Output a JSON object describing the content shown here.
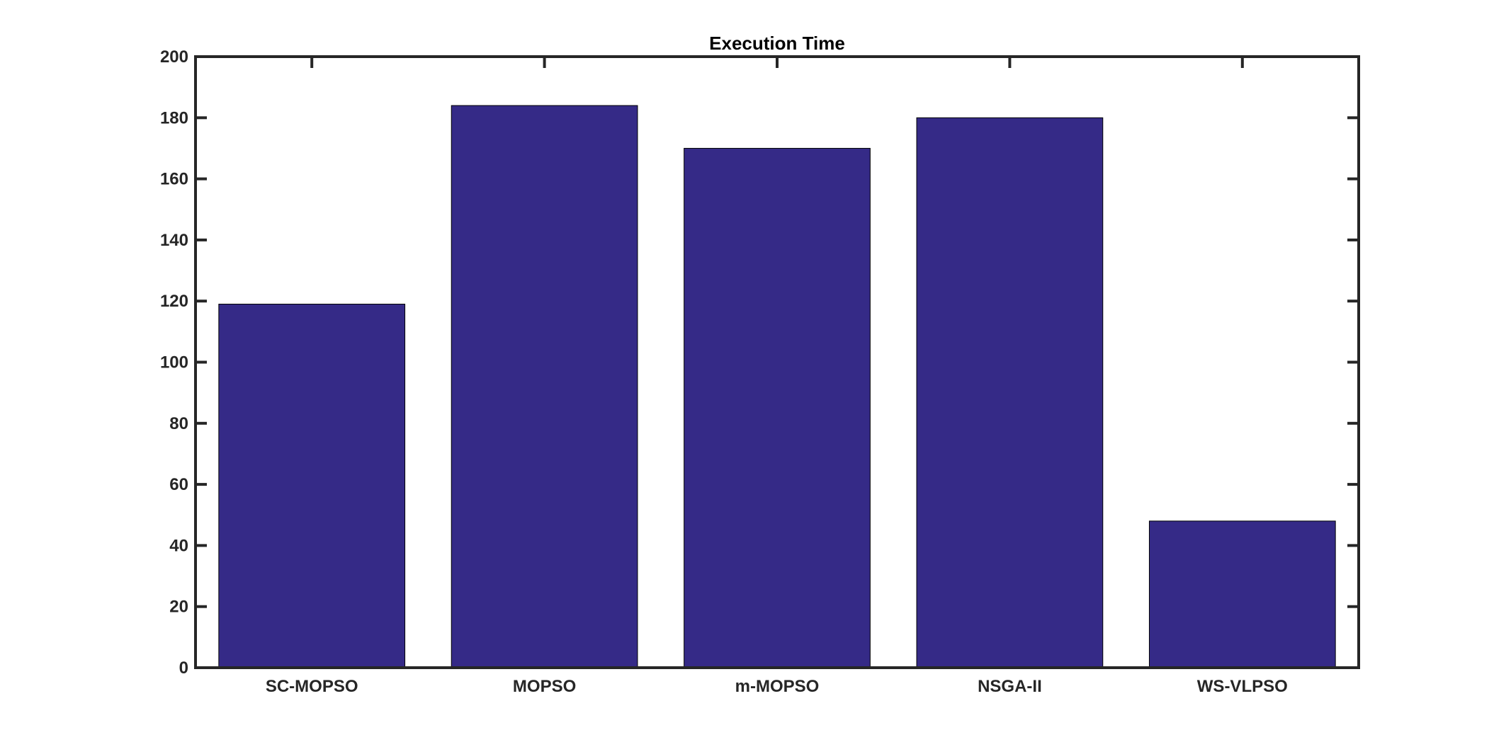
{
  "chart_data": {
    "type": "bar",
    "title": "Execution Time",
    "xlabel": "",
    "ylabel": "",
    "categories": [
      "SC-MOPSO",
      "MOPSO",
      "m-MOPSO",
      "NSGA-II",
      "WS-VLPSO"
    ],
    "values": [
      119,
      184,
      170,
      180,
      48
    ],
    "ylim": [
      0,
      200
    ],
    "yticks": [
      0,
      20,
      40,
      60,
      80,
      100,
      120,
      140,
      160,
      180,
      200
    ],
    "grid": false,
    "legend": "none",
    "colors": {
      "bar_fill": "#352A87",
      "bar_edge": "#000000",
      "axis": "#262626",
      "background": "#ffffff"
    }
  }
}
